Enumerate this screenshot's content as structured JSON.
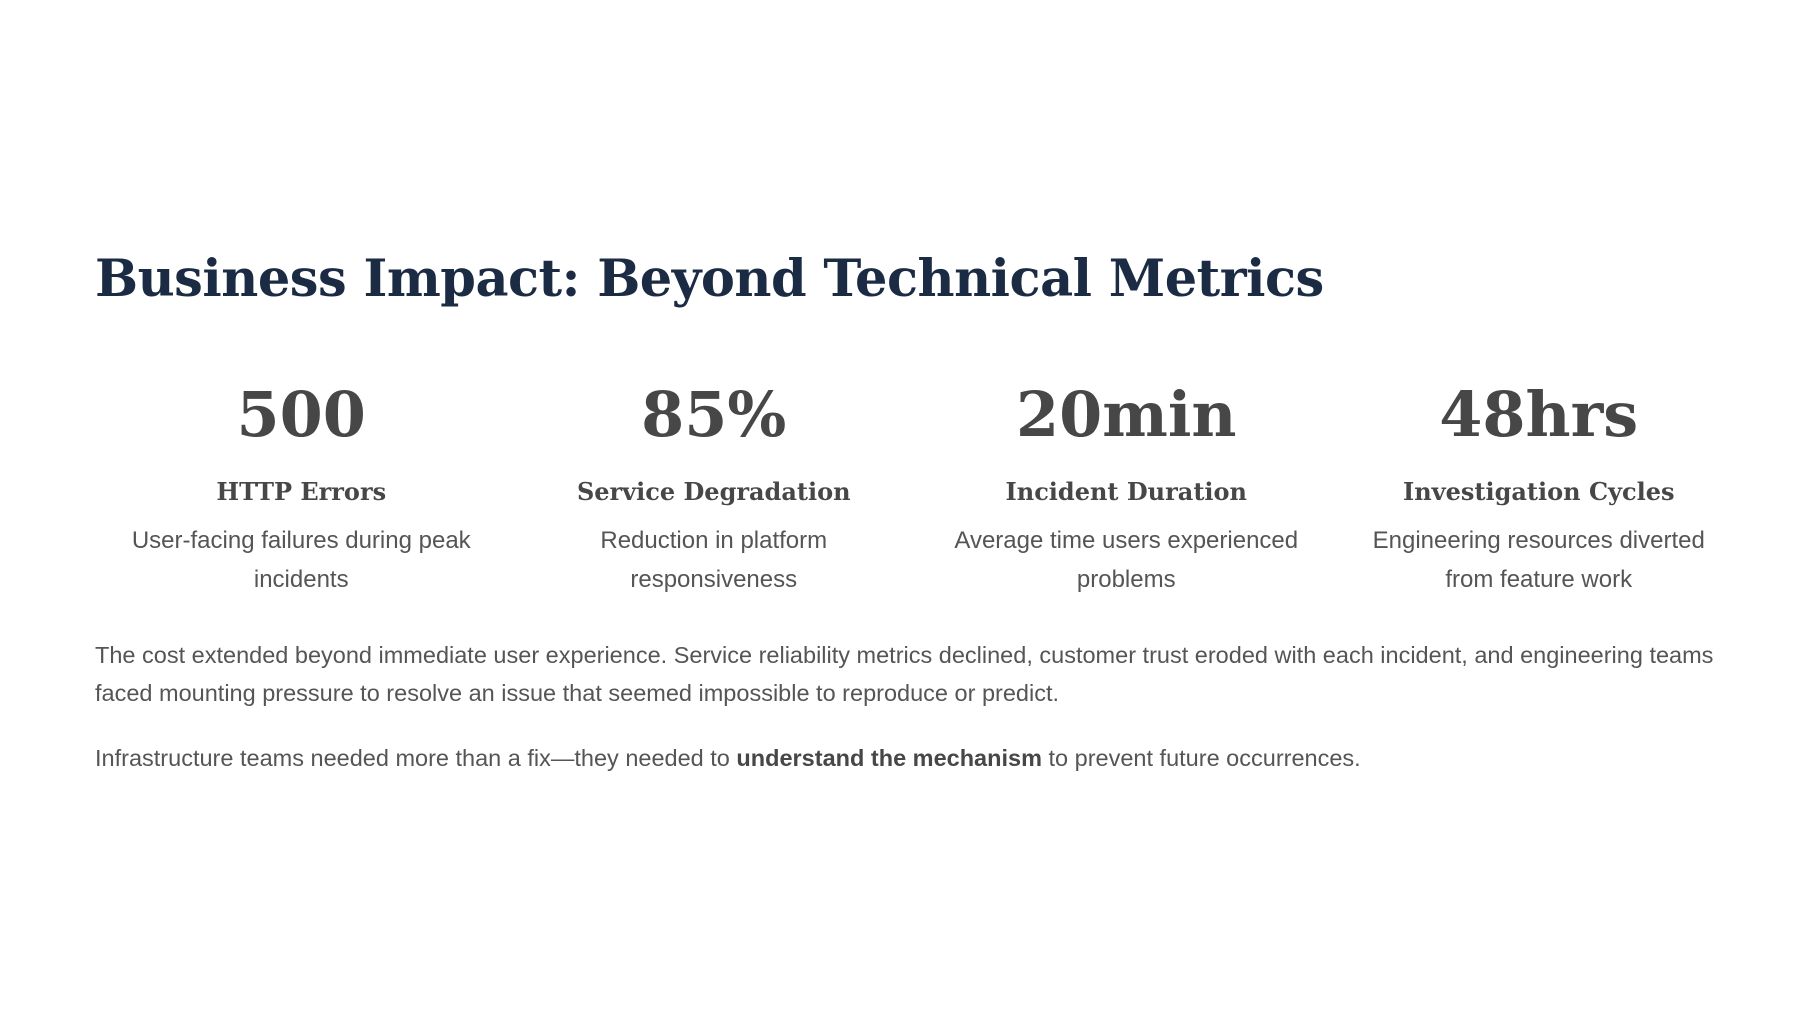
{
  "slide": {
    "title": "Business Impact: Beyond Technical Metrics",
    "stats": [
      {
        "value": "500",
        "label": "HTTP Errors",
        "description": "User-facing failures during peak incidents"
      },
      {
        "value": "85%",
        "label": "Service Degradation",
        "description": "Reduction in platform responsiveness"
      },
      {
        "value": "20min",
        "label": "Incident Duration",
        "description": "Average time users experienced problems"
      },
      {
        "value": "48hrs",
        "label": "Investigation Cycles",
        "description": "Engineering resources diverted from feature work"
      }
    ],
    "paragraph_1": "The cost extended beyond immediate user experience. Service reliability metrics declined, customer trust eroded with each incident, and engineering teams faced mounting pressure to resolve an issue that seemed impossible to reproduce or predict.",
    "paragraph_2": {
      "before": "Infrastructure teams needed more than a fix—they needed to ",
      "emphasis": "understand the mechanism",
      "after": " to prevent future occurrences."
    },
    "colors": {
      "title": "#1b2b44",
      "stat_text": "#474747",
      "body_text": "#555555",
      "background": "#ffffff"
    }
  }
}
